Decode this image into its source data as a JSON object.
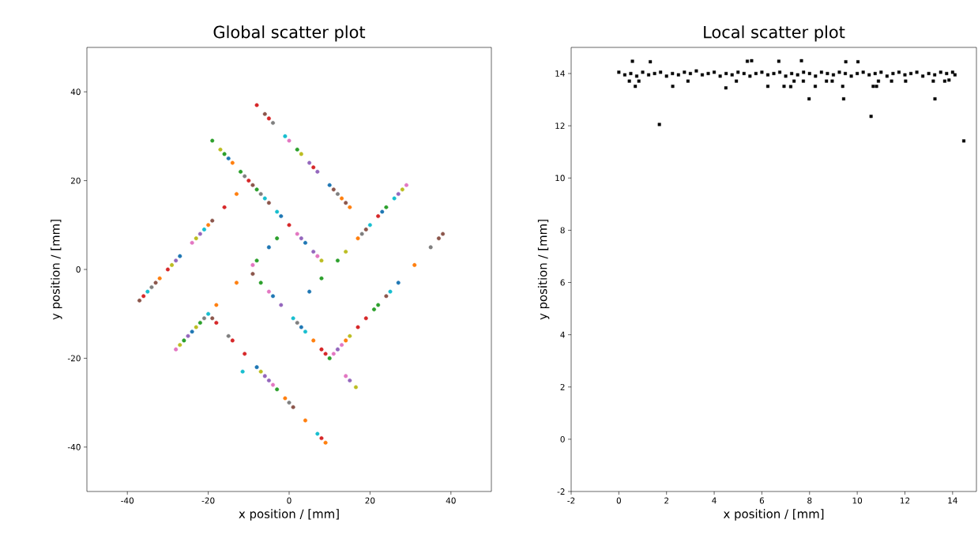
{
  "chart_data": [
    {
      "type": "scatter",
      "title": "Global scatter plot",
      "xlabel": "x position / [mm]",
      "ylabel": "y position / [mm]",
      "xlim": [
        -50,
        50
      ],
      "ylim": [
        -50,
        50
      ],
      "xticks": [
        -40,
        -20,
        0,
        20,
        40
      ],
      "yticks": [
        -40,
        -20,
        0,
        20,
        40
      ],
      "marker": "circle",
      "series": [
        {
          "color": "#1f77b4",
          "x": [
            -15,
            -2,
            4,
            -27,
            10,
            5,
            23,
            27,
            -4,
            3,
            -24,
            -5,
            -8
          ],
          "values": [
            25,
            12,
            6,
            3,
            19,
            -5,
            13,
            -3,
            -6,
            -13,
            -14,
            5,
            -22
          ]
        },
        {
          "color": "#ff7f0e",
          "x": [
            -14,
            -32,
            -20,
            -13,
            13,
            15,
            17,
            14,
            31,
            6,
            -18,
            -13,
            -1,
            4,
            9
          ],
          "values": [
            24,
            -2,
            10,
            17,
            16,
            14,
            7,
            -16,
            1,
            -16,
            -8,
            -3,
            -29,
            -34,
            -39
          ]
        },
        {
          "color": "#2ca02c",
          "x": [
            -19,
            -16,
            -12,
            -8,
            2,
            8,
            12,
            24,
            21,
            22,
            -7,
            10,
            -26,
            -22,
            -3,
            -8,
            -3
          ],
          "values": [
            29,
            26,
            22,
            18,
            27,
            -2,
            2,
            14,
            -9,
            -8,
            -3,
            -20,
            -16,
            -12,
            7,
            2,
            -27
          ]
        },
        {
          "color": "#d62728",
          "x": [
            -10,
            0,
            -36,
            -30,
            -16,
            -8,
            -5,
            6,
            22,
            17,
            19,
            8,
            9,
            -18,
            -14,
            -11,
            8
          ],
          "values": [
            20,
            10,
            -6,
            0,
            14,
            37,
            34,
            23,
            12,
            -13,
            -11,
            -18,
            -19,
            -12,
            -16,
            -19,
            -38
          ]
        },
        {
          "color": "#9467bd",
          "x": [
            3,
            6,
            -28,
            -22,
            5,
            7,
            27,
            12,
            -2,
            15,
            -25,
            -6,
            -5
          ],
          "values": [
            7,
            4,
            2,
            8,
            24,
            22,
            17,
            -18,
            -8,
            -25,
            -15,
            -24,
            -25
          ]
        },
        {
          "color": "#8c564b",
          "x": [
            -9,
            -5,
            -37,
            -33,
            -19,
            -6,
            11,
            14,
            19,
            24,
            37,
            38,
            -9,
            -19,
            1
          ],
          "values": [
            19,
            15,
            -7,
            -3,
            11,
            35,
            18,
            15,
            9,
            -6,
            7,
            8,
            -1,
            -11,
            -31
          ]
        },
        {
          "color": "#e377c2",
          "x": [
            2,
            7,
            -24,
            0,
            29,
            11,
            13,
            -5,
            14,
            -28,
            -9,
            -4
          ],
          "values": [
            8,
            3,
            6,
            29,
            19,
            -19,
            -17,
            -5,
            -24,
            -18,
            1,
            -26
          ]
        },
        {
          "color": "#7f7f7f",
          "x": [
            -11,
            -7,
            -34,
            -4,
            12,
            18,
            35,
            2,
            -21,
            -15,
            0
          ],
          "values": [
            21,
            17,
            -4,
            33,
            17,
            8,
            5,
            -12,
            -11,
            -15,
            -30
          ]
        },
        {
          "color": "#bcbd22",
          "x": [
            -17,
            8,
            -29,
            -23,
            3,
            14,
            28,
            15,
            16.5,
            -27,
            -23,
            -7
          ],
          "values": [
            27,
            2,
            1,
            7,
            26,
            4,
            18,
            -15,
            -26.5,
            -17,
            -13,
            -23
          ]
        },
        {
          "color": "#17becf",
          "x": [
            -6,
            -3,
            -35,
            -21,
            -1,
            20,
            26,
            25,
            1,
            4,
            -20,
            7,
            -11.5
          ],
          "values": [
            16,
            13,
            -5,
            9,
            30,
            10,
            16,
            -5,
            -11,
            -14,
            -10,
            -37,
            -23
          ]
        }
      ]
    },
    {
      "type": "scatter",
      "title": "Local scatter plot",
      "xlabel": "x position / [mm]",
      "ylabel": "y position / [mm]",
      "xlim": [
        -2,
        15
      ],
      "ylim": [
        -2,
        15
      ],
      "xticks": [
        -2,
        0,
        2,
        4,
        6,
        8,
        10,
        12,
        14
      ],
      "yticks": [
        -2,
        0,
        2,
        4,
        6,
        8,
        10,
        12,
        14
      ],
      "marker": "square",
      "series": [
        {
          "color": "#000000",
          "x": [
            0,
            0.25,
            0.5,
            0.75,
            1,
            1.25,
            1.5,
            1.75,
            2,
            2.25,
            2.5,
            2.75,
            3,
            3.25,
            3.5,
            3.75,
            4,
            4.25,
            4.5,
            4.75,
            5,
            5.25,
            5.5,
            5.75,
            6,
            6.25,
            6.5,
            6.75,
            7,
            7.25,
            7.5,
            7.75,
            8,
            8.25,
            8.5,
            8.75,
            9,
            9.25,
            9.5,
            9.75,
            10,
            10.25,
            10.5,
            10.75,
            11,
            11.25,
            11.5,
            11.75,
            12,
            12.25,
            12.5,
            12.75,
            13,
            13.25,
            13.5,
            13.75,
            14,
            14.1,
            0.57,
            1.32,
            5.39,
            5.57,
            6.71,
            7.66,
            9.52,
            10.03,
            1.7,
            10.58,
            14.47,
            7.98,
            9.43,
            13.26,
            0.69,
            2.26,
            6.25,
            6.93,
            7.21,
            8.24,
            9.39,
            10.67,
            10.81,
            4.49,
            0.44,
            0.84,
            2.9,
            4.93,
            7.35,
            7.74,
            8.71,
            8.95,
            10.89,
            11.44,
            12.03,
            13.19,
            13.67,
            13.85
          ],
          "values": [
            14.05,
            13.95,
            14.0,
            13.9,
            14.05,
            13.95,
            14.0,
            14.05,
            13.9,
            14.0,
            13.95,
            14.05,
            14.0,
            14.1,
            13.95,
            14.0,
            14.05,
            13.9,
            14.0,
            13.95,
            14.05,
            14.0,
            13.9,
            14.0,
            14.05,
            13.95,
            14.0,
            14.05,
            13.9,
            14.0,
            13.95,
            14.05,
            14.0,
            13.9,
            14.05,
            14.0,
            13.95,
            14.05,
            14.0,
            13.9,
            14.0,
            14.05,
            13.95,
            14.0,
            14.05,
            13.9,
            14.0,
            14.05,
            13.95,
            14.0,
            14.05,
            13.9,
            14.0,
            13.95,
            14.05,
            14.0,
            14.05,
            13.95,
            14.47,
            14.45,
            14.47,
            14.49,
            14.47,
            14.49,
            14.45,
            14.45,
            12.05,
            12.36,
            11.42,
            13.03,
            13.03,
            13.03,
            13.51,
            13.51,
            13.51,
            13.51,
            13.5,
            13.51,
            13.51,
            13.51,
            13.51,
            13.45,
            13.71,
            13.71,
            13.71,
            13.71,
            13.71,
            13.71,
            13.71,
            13.71,
            13.71,
            13.71,
            13.71,
            13.71,
            13.71,
            13.75
          ]
        }
      ]
    }
  ]
}
